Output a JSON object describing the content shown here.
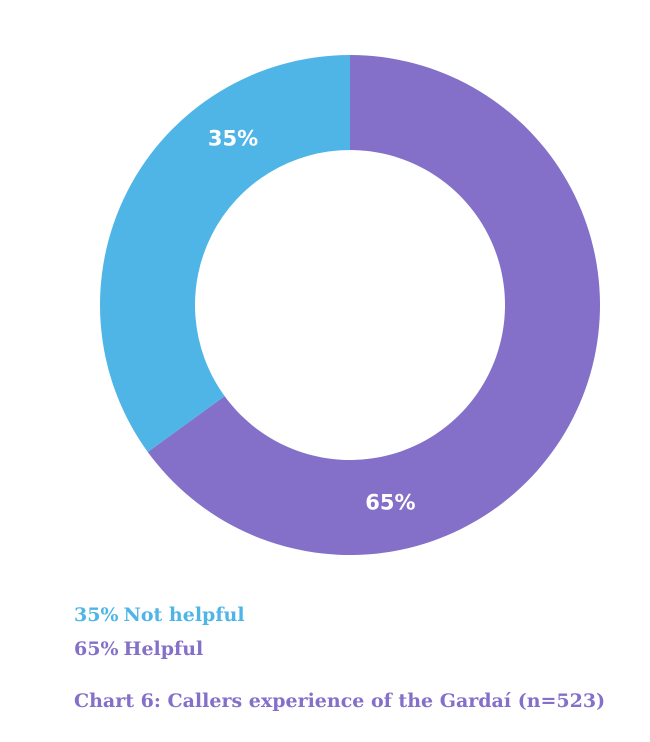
{
  "chart_data": {
    "type": "pie",
    "donut": true,
    "slices": [
      {
        "label": "Helpful",
        "value": 65,
        "value_label": "65%",
        "color": "#8470c8"
      },
      {
        "label": "Not helpful",
        "value": 35,
        "value_label": "35%",
        "color": "#4fb5e6"
      }
    ],
    "legend": [
      {
        "value_label": "35%",
        "label": "Not helpful",
        "color": "#4fb5e6"
      },
      {
        "value_label": "65%",
        "label": "Helpful",
        "color": "#8470c8"
      }
    ],
    "caption": "Chart 6: Callers experience of the Gardaí (n=523)",
    "caption_color": "#8470c8",
    "legend_placement": "bottom-left"
  }
}
